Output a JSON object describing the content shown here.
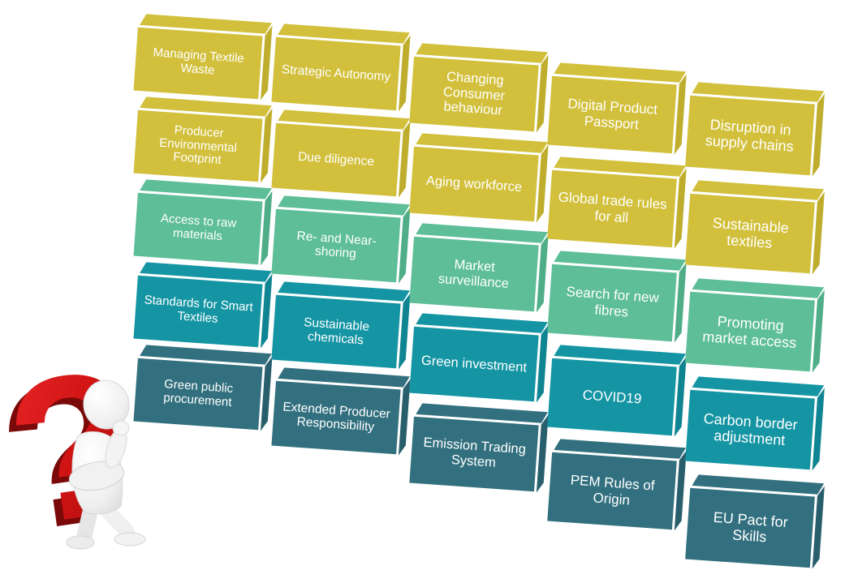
{
  "colors": {
    "yellow": {
      "front": "#d2c03c",
      "side": "#bfae2d"
    },
    "green": {
      "front": "#5ebe98",
      "side": "#4fae88"
    },
    "teal": {
      "front": "#1595a4",
      "side": "#0f8492"
    },
    "dark_teal": {
      "front": "#33707f",
      "side": "#295f6d"
    }
  },
  "figure": {
    "question_mark": "?",
    "question_mark_color": "#d41414",
    "question_mark_shadow_color": "#7a0909",
    "person_color": "#ededed"
  },
  "board": {
    "columns": [
      {
        "blocks": [
          {
            "label": "Managing Textile Waste",
            "color": "yellow"
          },
          {
            "label": "Producer Environmental Footprint",
            "color": "yellow"
          },
          {
            "label": "Access to raw materials",
            "color": "green"
          },
          {
            "label": "Standards for Smart Textiles",
            "color": "teal"
          },
          {
            "label": "Green public procurement",
            "color": "dark_teal"
          }
        ]
      },
      {
        "blocks": [
          {
            "label": "Strategic Autonomy",
            "color": "yellow"
          },
          {
            "label": "Due diligence",
            "color": "yellow"
          },
          {
            "label": "Re- and Near-shoring",
            "color": "green"
          },
          {
            "label": "Sustainable chemicals",
            "color": "teal"
          },
          {
            "label": "Extended Producer Responsibility",
            "color": "dark_teal"
          }
        ]
      },
      {
        "blocks": [
          {
            "label": "Changing Consumer behaviour",
            "color": "yellow"
          },
          {
            "label": "Aging workforce",
            "color": "yellow"
          },
          {
            "label": "Market surveillance",
            "color": "green"
          },
          {
            "label": "Green investment",
            "color": "teal"
          },
          {
            "label": "Emission Trading System",
            "color": "dark_teal"
          }
        ]
      },
      {
        "blocks": [
          {
            "label": "Digital Product Passport",
            "color": "yellow"
          },
          {
            "label": "Global trade rules for all",
            "color": "yellow"
          },
          {
            "label": "Search for new fibres",
            "color": "green"
          },
          {
            "label": "COVID19",
            "color": "teal"
          },
          {
            "label": "PEM Rules of Origin",
            "color": "dark_teal"
          }
        ]
      },
      {
        "blocks": [
          {
            "label": "Disruption in supply chains",
            "color": "yellow"
          },
          {
            "label": "Sustainable textiles",
            "color": "yellow"
          },
          {
            "label": "Promoting market access",
            "color": "green"
          },
          {
            "label": "Carbon border adjustment",
            "color": "teal"
          },
          {
            "label": "EU Pact for Skills",
            "color": "dark_teal"
          }
        ]
      }
    ]
  }
}
